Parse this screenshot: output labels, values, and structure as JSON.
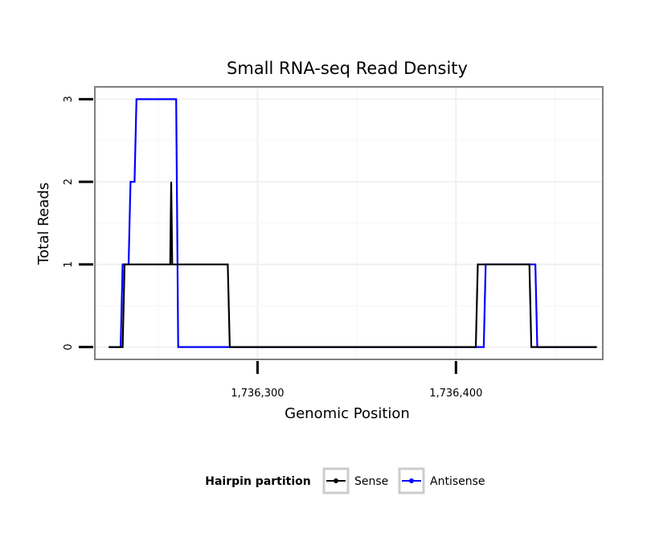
{
  "chart_data": {
    "type": "line",
    "title": "Small RNA-seq Read Density",
    "xlabel": "Genomic Position",
    "ylabel": "Total Reads",
    "xlim": [
      1736218,
      1736474
    ],
    "ylim": [
      -0.15,
      3.15
    ],
    "x_ticks": [
      1736300,
      1736400
    ],
    "x_tick_labels": [
      "1,736,300",
      "1,736,400"
    ],
    "y_ticks": [
      0,
      1,
      2,
      3
    ],
    "y_tick_labels": [
      "0",
      "1",
      "2",
      "3"
    ],
    "grid": true,
    "legend": {
      "title": "Hairpin partition",
      "position": "bottom"
    },
    "series": [
      {
        "name": "Sense",
        "color": "#000000",
        "x": [
          1736225,
          1736232,
          1736233,
          1736256,
          1736256.5,
          1736257,
          1736258,
          1736285,
          1736286,
          1736410,
          1736411,
          1736437,
          1736438,
          1736471
        ],
        "y": [
          0,
          0,
          1,
          1,
          2,
          1,
          1,
          1,
          0,
          0,
          1,
          1,
          0,
          0
        ]
      },
      {
        "name": "Antisense",
        "color": "#0000ff",
        "x": [
          1736225,
          1736231,
          1736232,
          1736235,
          1736236,
          1736238,
          1736239,
          1736259,
          1736260,
          1736414,
          1736415,
          1736440,
          1736441,
          1736471
        ],
        "y": [
          0,
          0,
          1,
          1,
          2,
          2,
          3,
          3,
          0,
          0,
          1,
          1,
          0,
          0
        ]
      }
    ]
  }
}
